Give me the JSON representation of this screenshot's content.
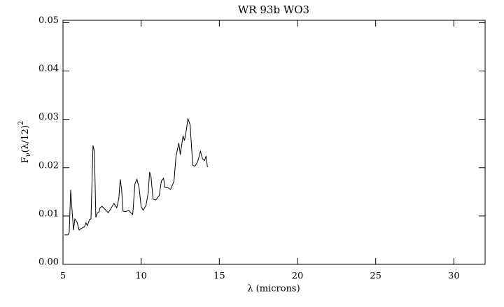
{
  "chart_data": {
    "type": "line",
    "title": "WR 93b WO3",
    "xlabel": "λ (microns)",
    "ylabel": [
      "F",
      "ν",
      "(λ/12)",
      "2"
    ],
    "xlim": [
      5,
      32
    ],
    "ylim": [
      0,
      0.0505
    ],
    "xticks": [
      5,
      10,
      15,
      20,
      25,
      30
    ],
    "yticks": [
      {
        "value": 0,
        "label": "0.00"
      },
      0.01,
      0.02,
      0.03,
      0.04,
      0.05
    ],
    "color": "#000000",
    "x": [
      5.09,
      5.31,
      5.4,
      5.49,
      5.58,
      5.67,
      5.76,
      5.89,
      6.03,
      6.2,
      6.38,
      6.47,
      6.56,
      6.7,
      6.79,
      6.92,
      7.01,
      7.1,
      7.19,
      7.32,
      7.37,
      7.5,
      7.68,
      7.9,
      8.13,
      8.26,
      8.44,
      8.57,
      8.66,
      8.75,
      8.84,
      9.02,
      9.2,
      9.33,
      9.46,
      9.6,
      9.73,
      9.87,
      10.0,
      10.13,
      10.31,
      10.45,
      10.54,
      10.63,
      10.76,
      10.94,
      11.16,
      11.29,
      11.43,
      11.52,
      11.74,
      11.88,
      12.1,
      12.23,
      12.41,
      12.5,
      12.68,
      12.77,
      12.9,
      12.99,
      13.13,
      13.3,
      13.44,
      13.62,
      13.79,
      13.93,
      14.06,
      14.15,
      14.24
    ],
    "values": [
      0.0061,
      0.0061,
      0.0066,
      0.0154,
      0.0112,
      0.0071,
      0.0094,
      0.0088,
      0.0071,
      0.0075,
      0.0078,
      0.0086,
      0.008,
      0.0093,
      0.0094,
      0.0246,
      0.0234,
      0.0097,
      0.0106,
      0.0109,
      0.0117,
      0.012,
      0.0114,
      0.0107,
      0.0119,
      0.0126,
      0.0117,
      0.0136,
      0.0176,
      0.0155,
      0.011,
      0.0109,
      0.0112,
      0.0107,
      0.0103,
      0.0166,
      0.0176,
      0.0158,
      0.0119,
      0.0112,
      0.0122,
      0.0148,
      0.0191,
      0.0181,
      0.0135,
      0.0133,
      0.0143,
      0.0172,
      0.0178,
      0.0159,
      0.0158,
      0.0155,
      0.0172,
      0.0224,
      0.0251,
      0.0227,
      0.0266,
      0.0256,
      0.028,
      0.0302,
      0.0289,
      0.0205,
      0.0203,
      0.0213,
      0.0234,
      0.0218,
      0.0215,
      0.0224,
      0.0201
    ]
  }
}
